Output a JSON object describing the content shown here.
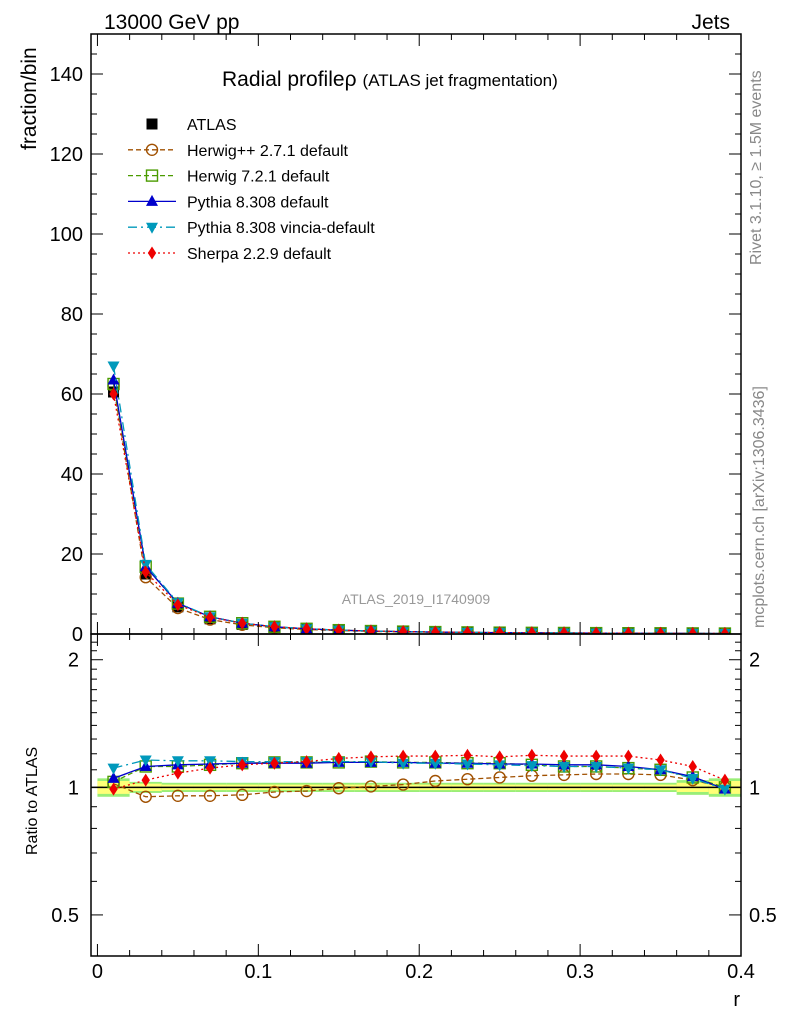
{
  "header": {
    "left": "13000 GeV pp",
    "right": "Jets"
  },
  "side_labels": {
    "rivet": "Rivet 3.1.10, ≥ 1.5M events",
    "mcplots": "mcplots.cern.ch [arXiv:1306.3436]"
  },
  "analysis_tag": "ATLAS_2019_I1740909",
  "colors": {
    "atlas": "#000000",
    "herwigpp": "#a05000",
    "herwig7": "#4b9b00",
    "pythia": "#0000cc",
    "vincia": "#0099bb",
    "sherpa": "#ee0000",
    "band_inner": "#ffff77",
    "band_outer": "#99ee77"
  },
  "chart_data": [
    {
      "type": "line",
      "title": "Radial profile",
      "title_symbol": "ρ",
      "subtitle": "(ATLAS jet fragmentation)",
      "ylabel": "fraction/bin",
      "xlim": [
        -0.004,
        0.4
      ],
      "ylim": [
        0,
        150
      ],
      "yticks": [
        0,
        20,
        40,
        60,
        80,
        100,
        120,
        140
      ],
      "legend_position": "top-left",
      "x": [
        0.01,
        0.03,
        0.05,
        0.07,
        0.09,
        0.11,
        0.13,
        0.15,
        0.17,
        0.19,
        0.21,
        0.23,
        0.25,
        0.27,
        0.29,
        0.31,
        0.33,
        0.35,
        0.37,
        0.39
      ],
      "series": [
        {
          "name": "ATLAS",
          "marker": "square-filled",
          "values": [
            60.5,
            15.0,
            6.8,
            3.8,
            2.4,
            1.6,
            1.15,
            0.85,
            0.65,
            0.52,
            0.42,
            0.35,
            0.3,
            0.26,
            0.23,
            0.2,
            0.18,
            0.16,
            0.14,
            0.12
          ]
        },
        {
          "name": "Herwig++ 2.7.1 default",
          "marker": "circle-open",
          "values": [
            62.0,
            14.2,
            6.5,
            3.6,
            2.3,
            1.55,
            1.12,
            0.85,
            0.65,
            0.53,
            0.43,
            0.36,
            0.31,
            0.27,
            0.24,
            0.21,
            0.19,
            0.17,
            0.14,
            0.12
          ]
        },
        {
          "name": "Herwig 7.2.1 default",
          "marker": "square-open",
          "values": [
            62.5,
            16.8,
            7.6,
            4.3,
            2.7,
            1.8,
            1.3,
            0.96,
            0.74,
            0.6,
            0.48,
            0.4,
            0.34,
            0.29,
            0.26,
            0.22,
            0.2,
            0.18,
            0.15,
            0.12
          ]
        },
        {
          "name": "Pythia 8.308 default",
          "marker": "triangle-up",
          "values": [
            63.5,
            16.8,
            7.7,
            4.3,
            2.7,
            1.8,
            1.3,
            0.97,
            0.74,
            0.59,
            0.48,
            0.4,
            0.34,
            0.29,
            0.26,
            0.22,
            0.2,
            0.17,
            0.145,
            0.12
          ]
        },
        {
          "name": "Pythia 8.308 vincia-default",
          "marker": "triangle-down",
          "values": [
            67.0,
            17.4,
            7.8,
            4.3,
            2.7,
            1.8,
            1.3,
            0.97,
            0.74,
            0.6,
            0.48,
            0.4,
            0.34,
            0.29,
            0.26,
            0.22,
            0.2,
            0.17,
            0.145,
            0.12
          ]
        },
        {
          "name": "Sherpa 2.2.9 default",
          "marker": "diamond",
          "values": [
            60.0,
            15.5,
            7.3,
            4.2,
            2.7,
            1.8,
            1.3,
            0.98,
            0.76,
            0.61,
            0.5,
            0.41,
            0.35,
            0.3,
            0.27,
            0.23,
            0.21,
            0.18,
            0.15,
            0.13
          ]
        }
      ]
    },
    {
      "type": "line",
      "ylabel": "Ratio to ATLAS",
      "xlabel": "r",
      "xlim": [
        -0.004,
        0.4
      ],
      "ylim": [
        0.4,
        2.3
      ],
      "log_y": true,
      "yticks": [
        0.5,
        1,
        2
      ],
      "xticks": [
        0,
        0.1,
        0.2,
        0.3,
        0.4
      ],
      "x": [
        0.01,
        0.03,
        0.05,
        0.07,
        0.09,
        0.11,
        0.13,
        0.15,
        0.17,
        0.19,
        0.21,
        0.23,
        0.25,
        0.27,
        0.29,
        0.31,
        0.33,
        0.35,
        0.37,
        0.39
      ],
      "uncertainty_band": {
        "inner": [
          0.035,
          0.02,
          0.015,
          0.015,
          0.015,
          0.015,
          0.015,
          0.015,
          0.015,
          0.015,
          0.015,
          0.015,
          0.015,
          0.015,
          0.015,
          0.015,
          0.015,
          0.015,
          0.025,
          0.035
        ],
        "outer": [
          0.05,
          0.03,
          0.025,
          0.025,
          0.025,
          0.025,
          0.025,
          0.025,
          0.025,
          0.025,
          0.025,
          0.025,
          0.025,
          0.025,
          0.025,
          0.025,
          0.025,
          0.025,
          0.04,
          0.05
        ]
      },
      "series": [
        {
          "name": "Herwig++ 2.7.1 default",
          "marker": "circle-open",
          "values": [
            1.02,
            0.95,
            0.955,
            0.955,
            0.96,
            0.975,
            0.98,
            0.995,
            1.005,
            1.015,
            1.035,
            1.045,
            1.055,
            1.065,
            1.07,
            1.075,
            1.075,
            1.07,
            1.04,
            1.0
          ]
        },
        {
          "name": "Herwig 7.2.1 default",
          "marker": "square-open",
          "values": [
            1.03,
            1.12,
            1.12,
            1.13,
            1.14,
            1.145,
            1.145,
            1.145,
            1.15,
            1.145,
            1.145,
            1.14,
            1.14,
            1.13,
            1.12,
            1.12,
            1.11,
            1.1,
            1.055,
            1.0
          ]
        },
        {
          "name": "Pythia 8.308 default",
          "marker": "triangle-up",
          "values": [
            1.05,
            1.12,
            1.13,
            1.135,
            1.14,
            1.14,
            1.14,
            1.145,
            1.145,
            1.145,
            1.14,
            1.14,
            1.135,
            1.135,
            1.13,
            1.13,
            1.12,
            1.1,
            1.06,
            0.99
          ]
        },
        {
          "name": "Pythia 8.308 vincia-default",
          "marker": "triangle-down",
          "values": [
            1.11,
            1.16,
            1.155,
            1.155,
            1.15,
            1.15,
            1.15,
            1.15,
            1.15,
            1.14,
            1.14,
            1.135,
            1.13,
            1.125,
            1.12,
            1.12,
            1.11,
            1.1,
            1.05,
            0.99
          ]
        },
        {
          "name": "Sherpa 2.2.9 default",
          "marker": "diamond",
          "values": [
            0.99,
            1.04,
            1.08,
            1.11,
            1.13,
            1.14,
            1.15,
            1.17,
            1.18,
            1.185,
            1.185,
            1.19,
            1.18,
            1.19,
            1.185,
            1.185,
            1.185,
            1.16,
            1.12,
            1.04
          ]
        }
      ]
    }
  ]
}
